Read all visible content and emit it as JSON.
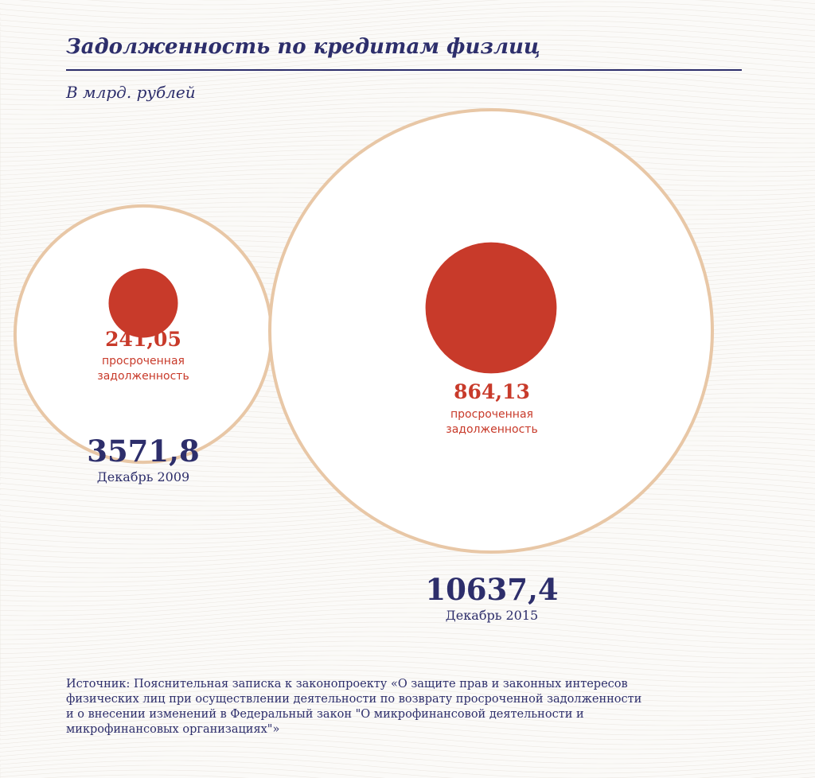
{
  "title": "Задолженность по кредитам физлиц",
  "subtitle": "В млрд. рублей",
  "chart_data": {
    "type": "bubble",
    "title": "Задолженность по кредитам физлиц",
    "unit": "В млрд. рублей",
    "overdue_label": "просроченная задолженность",
    "series": [
      {
        "name": "Декабрь 2009",
        "total": 3571.8,
        "total_label": "3571,8",
        "overdue": 241.05,
        "overdue_label": "241,05"
      },
      {
        "name": "Декабрь 2015",
        "total": 10637.4,
        "total_label": "10637,4",
        "overdue": 864.13,
        "overdue_label": "864,13"
      }
    ],
    "colors": {
      "total_ring": "#e8c7a6",
      "overdue_fill": "#c83a2a",
      "text_dark": "#2d2e6b"
    }
  },
  "source": {
    "lines": [
      "Источник: Пояснительная записка к законопроекту «О защите прав и законных интересов",
      "физических лиц при осуществлении деятельности по возврату просроченной задолженности",
      "и о внесении изменений в Федеральный закон \"О микрофинансовой деятельности и",
      "микрофинансовых организациях\"»"
    ]
  }
}
